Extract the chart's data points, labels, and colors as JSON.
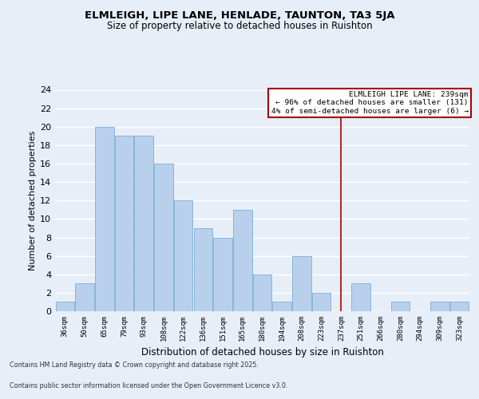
{
  "title": "ELMLEIGH, LIPE LANE, HENLADE, TAUNTON, TA3 5JA",
  "subtitle": "Size of property relative to detached houses in Ruishton",
  "xlabel": "Distribution of detached houses by size in Ruishton",
  "ylabel": "Number of detached properties",
  "categories": [
    "36sqm",
    "50sqm",
    "65sqm",
    "79sqm",
    "93sqm",
    "108sqm",
    "122sqm",
    "136sqm",
    "151sqm",
    "165sqm",
    "180sqm",
    "194sqm",
    "208sqm",
    "223sqm",
    "237sqm",
    "251sqm",
    "266sqm",
    "280sqm",
    "294sqm",
    "309sqm",
    "323sqm"
  ],
  "values": [
    1,
    3,
    20,
    19,
    19,
    16,
    12,
    9,
    8,
    11,
    4,
    1,
    6,
    2,
    0,
    3,
    0,
    1,
    0,
    1,
    1
  ],
  "bar_color": "#b8d0eb",
  "bar_edgecolor": "#7aafd4",
  "highlight_index": 14,
  "vline_x": 14,
  "annotation_title": "ELMLEIGH LIPE LANE: 239sqm",
  "annotation_line1": "← 96% of detached houses are smaller (131)",
  "annotation_line2": "4% of semi-detached houses are larger (6) →",
  "ylim": [
    0,
    24
  ],
  "yticks": [
    0,
    2,
    4,
    6,
    8,
    10,
    12,
    14,
    16,
    18,
    20,
    22,
    24
  ],
  "footnote1": "Contains HM Land Registry data © Crown copyright and database right 2025.",
  "footnote2": "Contains public sector information licensed under the Open Government Licence v3.0.",
  "bg_color": "#e8eef8",
  "grid_color": "#ffffff",
  "vline_color": "#aa0000"
}
